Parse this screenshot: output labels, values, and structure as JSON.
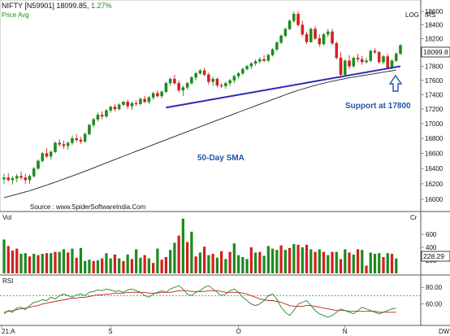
{
  "header": {
    "symbol": "NIFTY [N59901]",
    "price": "18099.85,",
    "change": "1.27%",
    "sub_price": "Price",
    "sub_avg": "Avg",
    "log": "LOG",
    "irs": "IRS"
  },
  "source": "Source : www.SpiderSoftwareIndia.Com",
  "annotations": {
    "sma": "50-Day SMA",
    "support": "Support at 17800"
  },
  "labels": {
    "vol": "Vol",
    "cr": "Cr",
    "rsi": "RSI",
    "last_price": "18099.8",
    "last_vol": "228.29",
    "dw": "DW"
  },
  "colors": {
    "up": "#1e8a1e",
    "down": "#d22020",
    "trendline": "#2b2bb0",
    "annotation": "#2255aa",
    "sma": "#222222",
    "rsi_green": "#1e8a1e",
    "rsi_red": "#c02020",
    "reference": "#2a9a2a"
  },
  "chart_data": [
    {
      "type": "candlestick",
      "ylim": [
        16000,
        18600
      ],
      "scale": "log",
      "y_ticks": [
        16000,
        16200,
        16400,
        16600,
        16800,
        17000,
        17200,
        17400,
        17600,
        17800,
        18000,
        18200,
        18400,
        18600
      ],
      "x_tick_labels": [
        "21:A",
        "S",
        "O",
        "N"
      ],
      "candles": [
        [
          16260,
          16330,
          16200,
          16280
        ],
        [
          16280,
          16340,
          16230,
          16250
        ],
        [
          16250,
          16300,
          16190,
          16270
        ],
        [
          16270,
          16330,
          16220,
          16300
        ],
        [
          16300,
          16360,
          16250,
          16280
        ],
        [
          16280,
          16330,
          16200,
          16250
        ],
        [
          16250,
          16320,
          16200,
          16300
        ],
        [
          16300,
          16420,
          16280,
          16400
        ],
        [
          16400,
          16520,
          16380,
          16500
        ],
        [
          16500,
          16620,
          16480,
          16600
        ],
        [
          16600,
          16670,
          16540,
          16560
        ],
        [
          16560,
          16640,
          16520,
          16620
        ],
        [
          16620,
          16760,
          16600,
          16740
        ],
        [
          16740,
          16790,
          16690,
          16720
        ],
        [
          16720,
          16770,
          16660,
          16700
        ],
        [
          16700,
          16760,
          16650,
          16740
        ],
        [
          16740,
          16840,
          16710,
          16800
        ],
        [
          16800,
          16860,
          16750,
          16780
        ],
        [
          16780,
          16820,
          16730,
          16760
        ],
        [
          16760,
          16880,
          16740,
          16860
        ],
        [
          16860,
          17000,
          16840,
          16980
        ],
        [
          16980,
          17080,
          16950,
          17060
        ],
        [
          17060,
          17150,
          17030,
          17120
        ],
        [
          17120,
          17170,
          17060,
          17100
        ],
        [
          17100,
          17200,
          17080,
          17180
        ],
        [
          17180,
          17250,
          17150,
          17230
        ],
        [
          17230,
          17270,
          17170,
          17200
        ],
        [
          17200,
          17280,
          17180,
          17260
        ],
        [
          17260,
          17310,
          17240,
          17300
        ],
        [
          17300,
          17330,
          17200,
          17240
        ],
        [
          17240,
          17300,
          17190,
          17280
        ],
        [
          17280,
          17320,
          17240,
          17270
        ],
        [
          17270,
          17360,
          17250,
          17340
        ],
        [
          17340,
          17380,
          17280,
          17300
        ],
        [
          17300,
          17380,
          17270,
          17360
        ],
        [
          17360,
          17440,
          17330,
          17420
        ],
        [
          17420,
          17460,
          17360,
          17380
        ],
        [
          17380,
          17460,
          17350,
          17440
        ],
        [
          17440,
          17580,
          17420,
          17560
        ],
        [
          17560,
          17640,
          17520,
          17620
        ],
        [
          17620,
          17680,
          17540,
          17560
        ],
        [
          17560,
          17600,
          17430,
          17460
        ],
        [
          17460,
          17530,
          17380,
          17500
        ],
        [
          17500,
          17580,
          17470,
          17560
        ],
        [
          17560,
          17660,
          17540,
          17640
        ],
        [
          17640,
          17720,
          17600,
          17700
        ],
        [
          17700,
          17760,
          17680,
          17740
        ],
        [
          17740,
          17780,
          17660,
          17680
        ],
        [
          17680,
          17710,
          17540,
          17580
        ],
        [
          17580,
          17650,
          17520,
          17620
        ],
        [
          17620,
          17640,
          17500,
          17530
        ],
        [
          17530,
          17560,
          17490,
          17520
        ],
        [
          17520,
          17580,
          17480,
          17560
        ],
        [
          17560,
          17620,
          17520,
          17600
        ],
        [
          17600,
          17680,
          17560,
          17660
        ],
        [
          17660,
          17720,
          17620,
          17700
        ],
        [
          17700,
          17780,
          17670,
          17760
        ],
        [
          17760,
          17820,
          17740,
          17800
        ],
        [
          17800,
          17860,
          17760,
          17840
        ],
        [
          17840,
          17900,
          17810,
          17870
        ],
        [
          17870,
          17930,
          17840,
          17900
        ],
        [
          17900,
          17960,
          17860,
          17880
        ],
        [
          17880,
          17980,
          17860,
          17960
        ],
        [
          17960,
          18060,
          17940,
          18040
        ],
        [
          18040,
          18160,
          18020,
          18140
        ],
        [
          18140,
          18260,
          18120,
          18240
        ],
        [
          18240,
          18360,
          18220,
          18340
        ],
        [
          18340,
          18480,
          18320,
          18460
        ],
        [
          18460,
          18600,
          18430,
          18560
        ],
        [
          18560,
          18600,
          18380,
          18400
        ],
        [
          18400,
          18460,
          18230,
          18260
        ],
        [
          18260,
          18300,
          18120,
          18150
        ],
        [
          18150,
          18360,
          18140,
          18340
        ],
        [
          18340,
          18380,
          18180,
          18200
        ],
        [
          18200,
          18260,
          18080,
          18120
        ],
        [
          18120,
          18280,
          18100,
          18260
        ],
        [
          18260,
          18340,
          18220,
          18300
        ],
        [
          18300,
          18340,
          18100,
          18130
        ],
        [
          18130,
          18160,
          17900,
          17920
        ],
        [
          17920,
          18000,
          17640,
          17680
        ],
        [
          17680,
          17900,
          17660,
          17880
        ],
        [
          17880,
          17960,
          17760,
          17800
        ],
        [
          17800,
          17940,
          17780,
          17920
        ],
        [
          17920,
          17980,
          17860,
          17900
        ],
        [
          17900,
          17950,
          17820,
          17860
        ],
        [
          17860,
          17920,
          17840,
          17880
        ],
        [
          17880,
          18040,
          17860,
          18020
        ],
        [
          18020,
          18060,
          17980,
          18000
        ],
        [
          18000,
          18020,
          17840,
          17860
        ],
        [
          17860,
          17960,
          17830,
          17940
        ],
        [
          17940,
          17980,
          17760,
          17780
        ],
        [
          17780,
          17900,
          17760,
          17880
        ],
        [
          17880,
          18000,
          17860,
          17980
        ],
        [
          17980,
          18120,
          17960,
          18100
        ]
      ],
      "sma_50": [
        16020,
        16035,
        16050,
        16065,
        16080,
        16095,
        16110,
        16128,
        16146,
        16165,
        16184,
        16203,
        16222,
        16242,
        16262,
        16282,
        16302,
        16323,
        16344,
        16365,
        16386,
        16408,
        16430,
        16452,
        16474,
        16496,
        16518,
        16540,
        16562,
        16584,
        16606,
        16628,
        16650,
        16672,
        16694,
        16716,
        16738,
        16760,
        16782,
        16804,
        16826,
        16848,
        16870,
        16892,
        16914,
        16936,
        16958,
        16980,
        17002,
        17024,
        17046,
        17068,
        17090,
        17112,
        17134,
        17156,
        17178,
        17200,
        17222,
        17244,
        17266,
        17288,
        17310,
        17332,
        17354,
        17376,
        17398,
        17420,
        17440,
        17460,
        17478,
        17496,
        17514,
        17530,
        17546,
        17560,
        17574,
        17588,
        17600,
        17612,
        17624,
        17636,
        17646,
        17656,
        17666,
        17676,
        17686,
        17696,
        17706,
        17716,
        17726,
        17736,
        17746
      ],
      "trendline": {
        "from": [
          17220,
          38
        ],
        "to": [
          17800,
          93
        ]
      },
      "annotations": [
        "50-Day SMA",
        "Support at 17800"
      ]
    },
    {
      "type": "bar",
      "name": "Vol",
      "y_ticks": [
        200,
        400,
        600
      ],
      "values": [
        520,
        420,
        350,
        380,
        300,
        310,
        260,
        300,
        280,
        300,
        310,
        310,
        330,
        330,
        370,
        320,
        380,
        240,
        390,
        190,
        210,
        190,
        200,
        230,
        310,
        230,
        290,
        230,
        190,
        290,
        220,
        370,
        240,
        280,
        230,
        160,
        380,
        210,
        250,
        360,
        470,
        580,
        840,
        480,
        640,
        260,
        320,
        410,
        280,
        300,
        240,
        340,
        220,
        330,
        460,
        280,
        250,
        220,
        400,
        320,
        330,
        270,
        420,
        380,
        360,
        430,
        360,
        390,
        450,
        440,
        400,
        440,
        370,
        330,
        370,
        330,
        280,
        330,
        330,
        220,
        370,
        320,
        290,
        370,
        360,
        120,
        320,
        300,
        310,
        250,
        310,
        300,
        228
      ],
      "colors": [
        "u",
        "d",
        "d",
        "d",
        "u",
        "u",
        "d",
        "u",
        "d",
        "u",
        "d",
        "u",
        "d",
        "u",
        "u",
        "d",
        "u",
        "d",
        "u",
        "u",
        "u",
        "d",
        "u",
        "d",
        "u",
        "u",
        "d",
        "u",
        "d",
        "u",
        "d",
        "u",
        "u",
        "d",
        "u",
        "d",
        "u",
        "d",
        "d",
        "u",
        "u",
        "d",
        "u",
        "d",
        "u",
        "d",
        "u",
        "d",
        "u",
        "d",
        "u",
        "d",
        "u",
        "d",
        "u",
        "u",
        "u",
        "u",
        "d",
        "u",
        "d",
        "u",
        "u",
        "u",
        "u",
        "d",
        "u",
        "d",
        "u",
        "d",
        "u",
        "d",
        "u",
        "d",
        "u",
        "d",
        "u",
        "d",
        "u",
        "d",
        "u",
        "d",
        "u",
        "d",
        "u",
        "d",
        "u",
        "u",
        "u",
        "d",
        "u",
        "d",
        "u"
      ]
    },
    {
      "type": "line",
      "name": "RSI",
      "y_ticks": [
        60,
        80
      ],
      "reference": 70,
      "series_green": [
        48,
        52,
        50,
        55,
        56,
        53,
        58,
        62,
        63,
        65,
        64,
        68,
        66,
        70,
        72,
        70,
        68,
        71,
        72,
        70,
        74,
        75,
        77,
        76,
        78,
        77,
        75,
        76,
        74,
        77,
        78,
        76,
        74,
        70,
        68,
        72,
        74,
        76,
        74,
        78,
        80,
        82,
        78,
        72,
        70,
        74,
        76,
        80,
        82,
        78,
        74,
        70,
        72,
        76,
        78,
        74,
        68,
        64,
        60,
        58,
        60,
        64,
        70,
        72,
        66,
        56,
        50,
        46,
        52,
        60,
        62,
        64,
        58,
        52,
        48,
        46,
        44,
        46,
        50,
        54,
        52,
        50,
        48,
        52,
        56,
        54,
        52,
        50,
        48,
        50,
        52,
        54,
        55
      ],
      "series_red": [
        50,
        51,
        52,
        53,
        54,
        55,
        56,
        57,
        58,
        60,
        61,
        62,
        63,
        64,
        65,
        66,
        67,
        67,
        68,
        68,
        69,
        70,
        71,
        71,
        72,
        72,
        73,
        73,
        73,
        74,
        74,
        74,
        74,
        74,
        73,
        73,
        73,
        74,
        74,
        74,
        75,
        76,
        76,
        76,
        75,
        75,
        75,
        75,
        76,
        76,
        76,
        75,
        74,
        74,
        74,
        74,
        73,
        72,
        70,
        68,
        66,
        65,
        64,
        64,
        63,
        62,
        60,
        58,
        57,
        57,
        57,
        58,
        58,
        57,
        56,
        55,
        54,
        53,
        52,
        52,
        52,
        51,
        51,
        51,
        51,
        51,
        51,
        51,
        50,
        50,
        50,
        50,
        50
      ]
    }
  ]
}
